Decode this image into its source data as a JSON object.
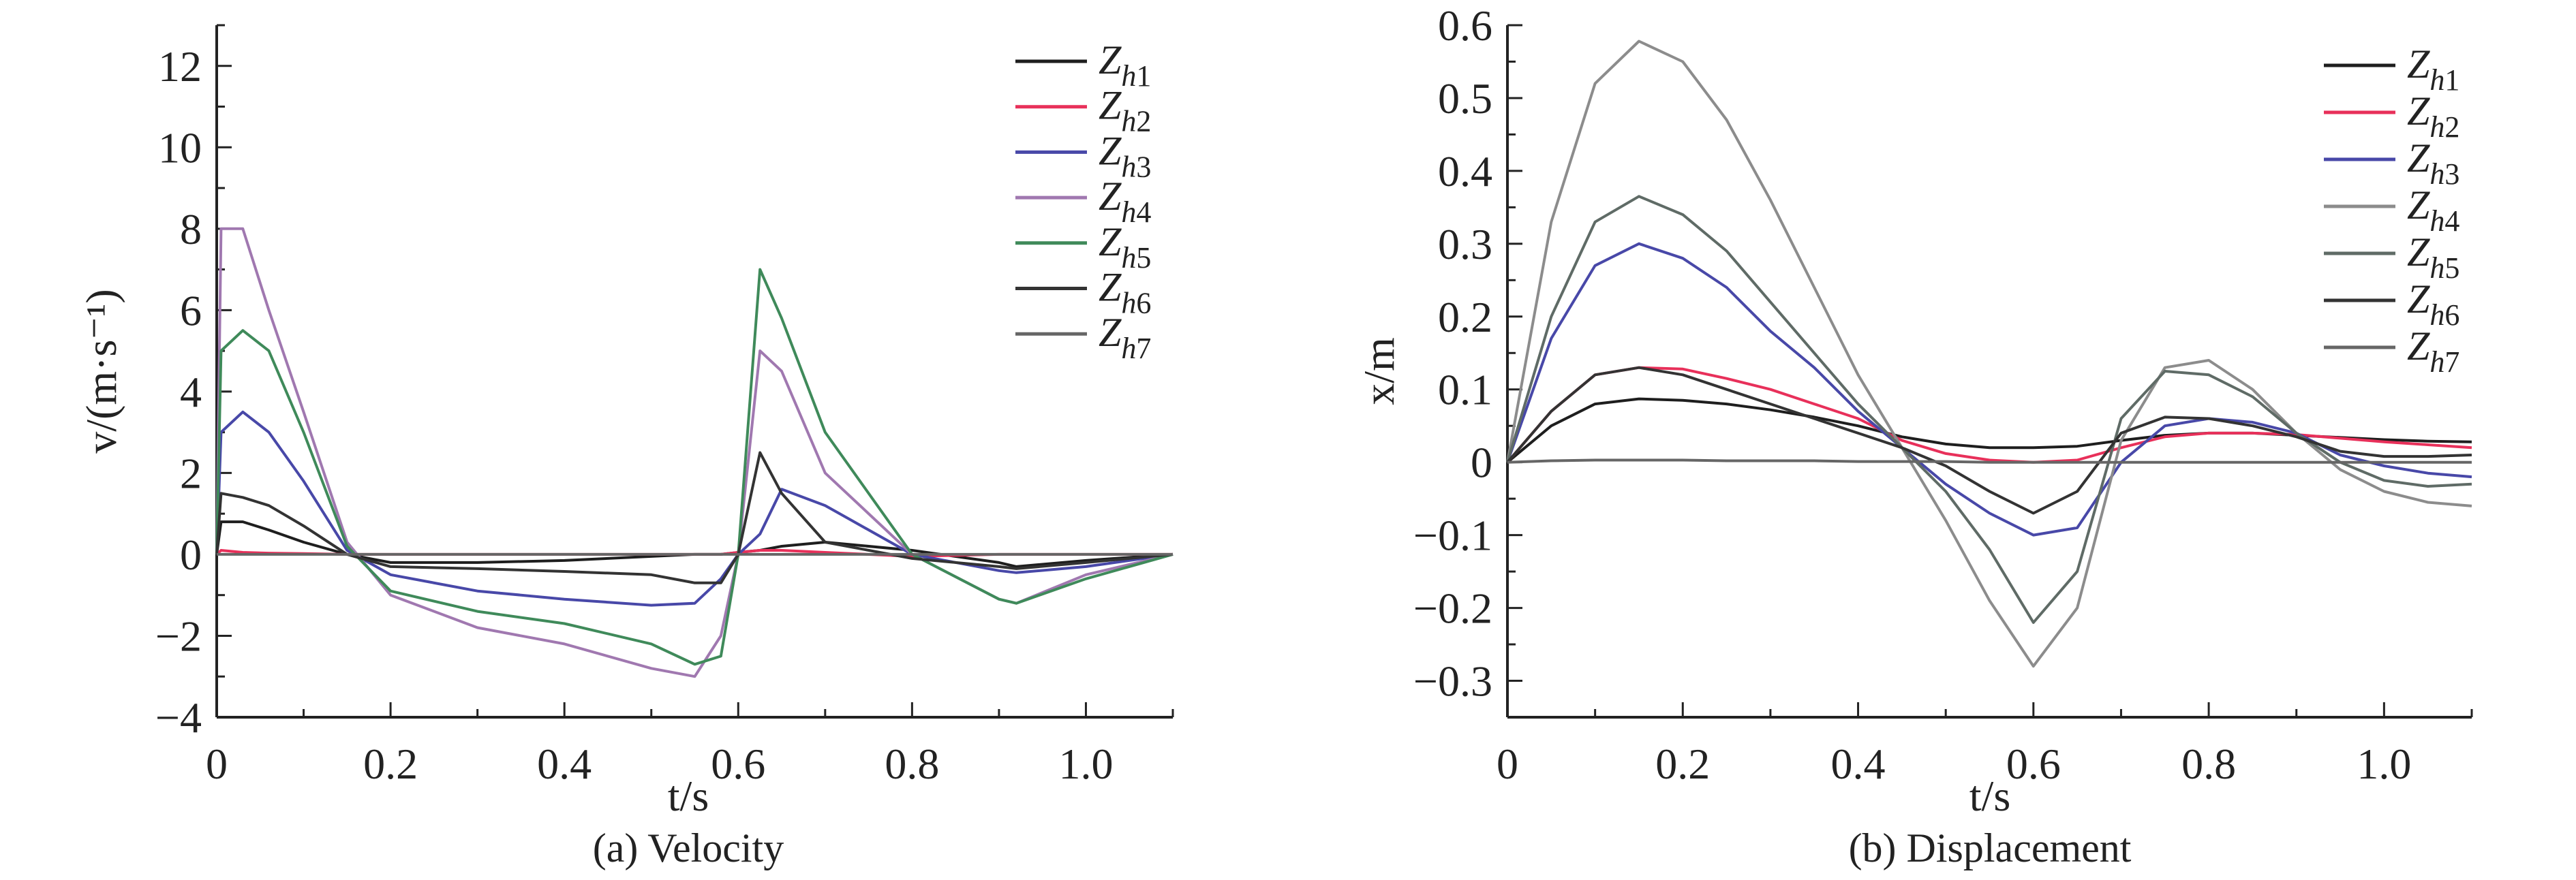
{
  "chart_data": [
    {
      "type": "line",
      "caption": "(a) Velocity",
      "xlabel": "t/s",
      "ylabel": "v/(m·s⁻¹)",
      "xlim": [
        0,
        1.1
      ],
      "ylim": [
        -4,
        13
      ],
      "xticks": [
        0,
        0.2,
        0.4,
        0.6,
        0.8,
        1.0
      ],
      "xtick_labels": [
        "0",
        "0.2",
        "0.4",
        "0.6",
        "0.8",
        "1.0"
      ],
      "yticks": [
        -4,
        -2,
        0,
        2,
        4,
        6,
        8,
        10,
        12
      ],
      "ytick_labels": [
        "−4",
        "−2",
        "0",
        "2",
        "4",
        "6",
        "8",
        "10",
        "12"
      ],
      "legend_position": "top-right",
      "grid": false,
      "x": [
        0,
        0.005,
        0.03,
        0.06,
        0.1,
        0.15,
        0.2,
        0.3,
        0.4,
        0.5,
        0.55,
        0.58,
        0.6,
        0.625,
        0.65,
        0.7,
        0.8,
        0.9,
        0.92,
        1.0,
        1.1
      ],
      "series": [
        {
          "name": "Zh1",
          "color": "#1e1e1e",
          "values": [
            0,
            0.8,
            0.8,
            0.6,
            0.3,
            0,
            -0.2,
            -0.2,
            -0.15,
            -0.05,
            0,
            0,
            0.05,
            0.1,
            0.2,
            0.3,
            0.1,
            -0.2,
            -0.3,
            -0.15,
            0
          ]
        },
        {
          "name": "Zh2",
          "color": "#e8305a",
          "values": [
            0,
            0.1,
            0.05,
            0.03,
            0.02,
            0,
            0,
            0,
            0,
            0,
            0,
            0,
            0.05,
            0.1,
            0.1,
            0.05,
            -0.05,
            0,
            0,
            0,
            0
          ]
        },
        {
          "name": "Zh3",
          "color": "#4848a8",
          "values": [
            0,
            3,
            3.5,
            3,
            1.8,
            0.1,
            -0.5,
            -0.9,
            -1.1,
            -1.25,
            -1.2,
            -0.6,
            0,
            0.5,
            1.6,
            1.2,
            0,
            -0.4,
            -0.45,
            -0.3,
            0
          ]
        },
        {
          "name": "Zh4",
          "color": "#a078b0",
          "values": [
            0,
            8,
            8,
            6,
            3.5,
            0.3,
            -1,
            -1.8,
            -2.2,
            -2.8,
            -3.0,
            -2,
            0,
            5,
            4.5,
            2,
            0,
            -1.1,
            -1.2,
            -0.5,
            0
          ]
        },
        {
          "name": "Zh5",
          "color": "#3f8a5a",
          "values": [
            0,
            5,
            5.5,
            5,
            3,
            0.2,
            -0.9,
            -1.4,
            -1.7,
            -2.2,
            -2.7,
            -2.5,
            0,
            7,
            5.8,
            3,
            0,
            -1.1,
            -1.2,
            -0.6,
            0
          ]
        },
        {
          "name": "Zh6",
          "color": "#333333",
          "values": [
            0,
            1.5,
            1.4,
            1.2,
            0.7,
            0,
            -0.3,
            -0.35,
            -0.42,
            -0.5,
            -0.7,
            -0.7,
            0,
            2.5,
            1.5,
            0.3,
            -0.1,
            -0.3,
            -0.35,
            -0.2,
            0
          ]
        },
        {
          "name": "Zh7",
          "color": "#666666",
          "values": [
            0,
            0,
            0,
            0,
            0,
            0,
            0,
            0,
            0,
            0,
            0,
            0,
            0,
            0,
            0,
            0,
            0,
            0,
            0,
            0,
            0
          ]
        }
      ]
    },
    {
      "type": "line",
      "caption": "(b) Displacement",
      "xlabel": "t/s",
      "ylabel": "x/m",
      "xlim": [
        0,
        1.1
      ],
      "ylim": [
        -0.35,
        0.6
      ],
      "xticks": [
        0,
        0.2,
        0.4,
        0.6,
        0.8,
        1.0
      ],
      "xtick_labels": [
        "0",
        "0.2",
        "0.4",
        "0.6",
        "0.8",
        "1.0"
      ],
      "yticks": [
        -0.3,
        -0.2,
        -0.1,
        0,
        0.1,
        0.2,
        0.3,
        0.4,
        0.5,
        0.6
      ],
      "ytick_labels": [
        "−0.3",
        "−0.2",
        "−0.1",
        "0",
        "0.1",
        "0.2",
        "0.3",
        "0.4",
        "0.5",
        "0.6"
      ],
      "legend_position": "top-right",
      "grid": false,
      "x": [
        0,
        0.05,
        0.1,
        0.15,
        0.2,
        0.25,
        0.3,
        0.35,
        0.4,
        0.45,
        0.5,
        0.55,
        0.6,
        0.65,
        0.7,
        0.75,
        0.8,
        0.85,
        0.9,
        0.95,
        1.0,
        1.05,
        1.1
      ],
      "series": [
        {
          "name": "Zh1",
          "color": "#1e1e1e",
          "values": [
            0,
            0.05,
            0.08,
            0.087,
            0.085,
            0.08,
            0.072,
            0.062,
            0.05,
            0.035,
            0.025,
            0.02,
            0.02,
            0.022,
            0.03,
            0.037,
            0.04,
            0.04,
            0.037,
            0.034,
            0.031,
            0.029,
            0.028
          ]
        },
        {
          "name": "Zh2",
          "color": "#e8305a",
          "values": [
            0,
            0.07,
            0.12,
            0.13,
            0.128,
            0.115,
            0.1,
            0.08,
            0.06,
            0.03,
            0.012,
            0.003,
            0,
            0.003,
            0.02,
            0.035,
            0.04,
            0.04,
            0.038,
            0.033,
            0.028,
            0.024,
            0.02
          ]
        },
        {
          "name": "Zh3",
          "color": "#4848a8",
          "values": [
            0,
            0.17,
            0.27,
            0.3,
            0.28,
            0.24,
            0.18,
            0.13,
            0.07,
            0.02,
            -0.03,
            -0.07,
            -0.1,
            -0.09,
            0,
            0.05,
            0.06,
            0.055,
            0.04,
            0.01,
            -0.005,
            -0.015,
            -0.02
          ]
        },
        {
          "name": "Zh4",
          "color": "#8c8c8c",
          "values": [
            0,
            0.33,
            0.52,
            0.578,
            0.55,
            0.47,
            0.36,
            0.24,
            0.12,
            0.02,
            -0.08,
            -0.19,
            -0.28,
            -0.2,
            0.03,
            0.13,
            0.14,
            0.1,
            0.04,
            -0.01,
            -0.04,
            -0.055,
            -0.06
          ]
        },
        {
          "name": "Zh5",
          "color": "#5f6b66",
          "values": [
            0,
            0.2,
            0.33,
            0.365,
            0.34,
            0.29,
            0.22,
            0.15,
            0.08,
            0.02,
            -0.04,
            -0.12,
            -0.22,
            -0.15,
            0.06,
            0.125,
            0.12,
            0.09,
            0.04,
            0,
            -0.025,
            -0.033,
            -0.03
          ]
        },
        {
          "name": "Zh6",
          "color": "#333333",
          "values": [
            0,
            0.07,
            0.12,
            0.13,
            0.12,
            0.1,
            0.08,
            0.06,
            0.04,
            0.02,
            -0.005,
            -0.04,
            -0.07,
            -0.04,
            0.04,
            0.062,
            0.06,
            0.05,
            0.035,
            0.015,
            0.008,
            0.008,
            0.01
          ]
        },
        {
          "name": "Zh7",
          "color": "#666666",
          "values": [
            0,
            0.002,
            0.003,
            0.003,
            0.003,
            0.002,
            0.002,
            0.002,
            0.001,
            0.001,
            0.001,
            0,
            0,
            0,
            0,
            0,
            0,
            0,
            0,
            0,
            0,
            0,
            0
          ]
        }
      ]
    }
  ]
}
